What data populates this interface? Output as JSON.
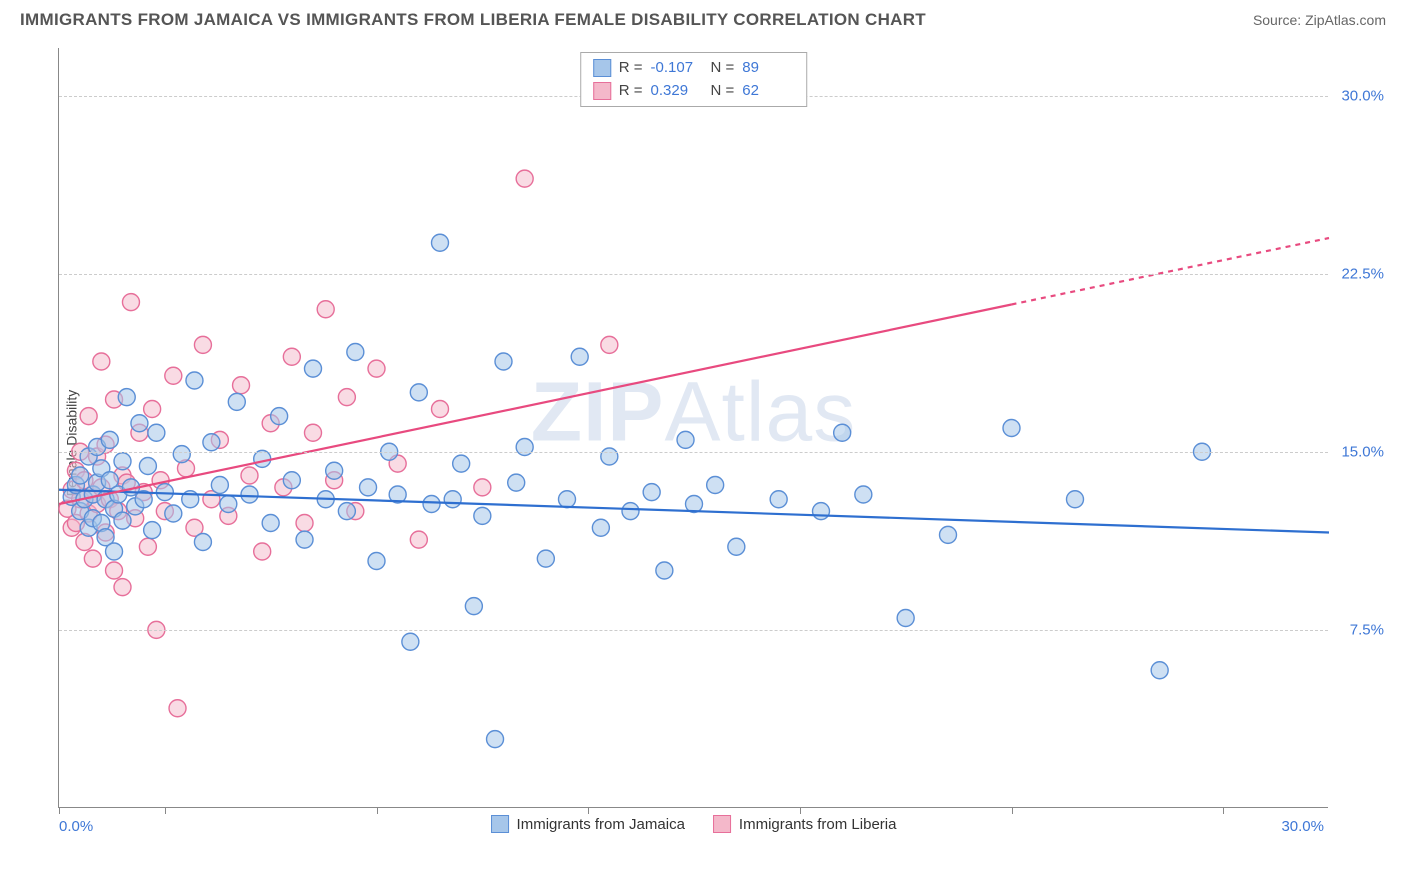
{
  "title": "IMMIGRANTS FROM JAMAICA VS IMMIGRANTS FROM LIBERIA FEMALE DISABILITY CORRELATION CHART",
  "source": "Source: ZipAtlas.com",
  "watermark_a": "ZIP",
  "watermark_b": "Atlas",
  "ylabel": "Female Disability",
  "chart": {
    "type": "scatter",
    "xlim": [
      0,
      30
    ],
    "ylim": [
      0,
      32
    ],
    "x_axis_label_min": "0.0%",
    "x_axis_label_max": "30.0%",
    "y_ticks": [
      7.5,
      15.0,
      22.5,
      30.0
    ],
    "y_tick_labels": [
      "7.5%",
      "15.0%",
      "22.5%",
      "30.0%"
    ],
    "x_tick_positions": [
      0,
      2.5,
      7.5,
      12.5,
      17.5,
      22.5,
      27.5
    ],
    "background_color": "#ffffff",
    "grid_color": "#cccccc",
    "axis_color": "#888888",
    "tick_label_color": "#3e77d6",
    "marker_radius": 8.5,
    "marker_stroke_width": 1.4,
    "line_width": 2.2,
    "series": [
      {
        "name": "Immigrants from Jamaica",
        "fill": "#a6c6ea",
        "stroke": "#5b8fd6",
        "fill_opacity": 0.55,
        "line_color": "#2e6fd0",
        "R": "-0.107",
        "N": "89",
        "trend": {
          "x1": 0,
          "y1": 13.4,
          "x2": 30,
          "y2": 11.6,
          "dash_from_x": null
        },
        "points": [
          [
            0.3,
            13.1
          ],
          [
            0.4,
            13.6
          ],
          [
            0.5,
            12.5
          ],
          [
            0.5,
            14.0
          ],
          [
            0.6,
            13.0
          ],
          [
            0.7,
            11.8
          ],
          [
            0.7,
            14.8
          ],
          [
            0.8,
            13.2
          ],
          [
            0.8,
            12.2
          ],
          [
            0.9,
            15.2
          ],
          [
            0.9,
            13.7
          ],
          [
            1.0,
            12.0
          ],
          [
            1.0,
            14.3
          ],
          [
            1.1,
            13.0
          ],
          [
            1.1,
            11.4
          ],
          [
            1.2,
            13.8
          ],
          [
            1.2,
            15.5
          ],
          [
            1.3,
            12.6
          ],
          [
            1.3,
            10.8
          ],
          [
            1.4,
            13.2
          ],
          [
            1.5,
            14.6
          ],
          [
            1.5,
            12.1
          ],
          [
            1.6,
            17.3
          ],
          [
            1.7,
            13.5
          ],
          [
            1.8,
            12.7
          ],
          [
            1.9,
            16.2
          ],
          [
            2.0,
            13.0
          ],
          [
            2.1,
            14.4
          ],
          [
            2.2,
            11.7
          ],
          [
            2.3,
            15.8
          ],
          [
            2.5,
            13.3
          ],
          [
            2.7,
            12.4
          ],
          [
            2.9,
            14.9
          ],
          [
            3.1,
            13.0
          ],
          [
            3.2,
            18.0
          ],
          [
            3.4,
            11.2
          ],
          [
            3.6,
            15.4
          ],
          [
            3.8,
            13.6
          ],
          [
            4.0,
            12.8
          ],
          [
            4.2,
            17.1
          ],
          [
            4.5,
            13.2
          ],
          [
            4.8,
            14.7
          ],
          [
            5.0,
            12.0
          ],
          [
            5.2,
            16.5
          ],
          [
            5.5,
            13.8
          ],
          [
            5.8,
            11.3
          ],
          [
            6.0,
            18.5
          ],
          [
            6.3,
            13.0
          ],
          [
            6.5,
            14.2
          ],
          [
            6.8,
            12.5
          ],
          [
            7.0,
            19.2
          ],
          [
            7.3,
            13.5
          ],
          [
            7.5,
            10.4
          ],
          [
            7.8,
            15.0
          ],
          [
            8.0,
            13.2
          ],
          [
            8.3,
            7.0
          ],
          [
            8.5,
            17.5
          ],
          [
            8.8,
            12.8
          ],
          [
            9.0,
            23.8
          ],
          [
            9.3,
            13.0
          ],
          [
            9.5,
            14.5
          ],
          [
            9.8,
            8.5
          ],
          [
            10.0,
            12.3
          ],
          [
            10.3,
            2.9
          ],
          [
            10.5,
            18.8
          ],
          [
            10.8,
            13.7
          ],
          [
            11.0,
            15.2
          ],
          [
            11.5,
            10.5
          ],
          [
            12.0,
            13.0
          ],
          [
            12.3,
            19.0
          ],
          [
            12.8,
            11.8
          ],
          [
            13.0,
            14.8
          ],
          [
            13.5,
            12.5
          ],
          [
            14.0,
            13.3
          ],
          [
            14.3,
            10.0
          ],
          [
            14.8,
            15.5
          ],
          [
            15.0,
            12.8
          ],
          [
            15.5,
            13.6
          ],
          [
            16.0,
            11.0
          ],
          [
            17.0,
            13.0
          ],
          [
            18.0,
            12.5
          ],
          [
            18.5,
            15.8
          ],
          [
            19.0,
            13.2
          ],
          [
            20.0,
            8.0
          ],
          [
            21.0,
            11.5
          ],
          [
            22.5,
            16.0
          ],
          [
            24.0,
            13.0
          ],
          [
            26.0,
            5.8
          ],
          [
            27.0,
            15.0
          ]
        ]
      },
      {
        "name": "Immigrants from Liberia",
        "fill": "#f4b8ca",
        "stroke": "#e76f9a",
        "fill_opacity": 0.5,
        "line_color": "#e84a7f",
        "R": "0.329",
        "N": "62",
        "trend": {
          "x1": 0,
          "y1": 12.8,
          "x2": 30,
          "y2": 24.0,
          "dash_from_x": 22.5
        },
        "points": [
          [
            0.2,
            12.6
          ],
          [
            0.3,
            13.4
          ],
          [
            0.3,
            11.8
          ],
          [
            0.4,
            14.2
          ],
          [
            0.4,
            12.0
          ],
          [
            0.5,
            13.0
          ],
          [
            0.5,
            15.0
          ],
          [
            0.6,
            11.2
          ],
          [
            0.6,
            13.8
          ],
          [
            0.7,
            12.4
          ],
          [
            0.7,
            16.5
          ],
          [
            0.8,
            13.2
          ],
          [
            0.8,
            10.5
          ],
          [
            0.9,
            14.8
          ],
          [
            0.9,
            12.8
          ],
          [
            1.0,
            18.8
          ],
          [
            1.0,
            13.5
          ],
          [
            1.1,
            11.6
          ],
          [
            1.1,
            15.3
          ],
          [
            1.2,
            13.0
          ],
          [
            1.3,
            10.0
          ],
          [
            1.3,
            17.2
          ],
          [
            1.4,
            12.5
          ],
          [
            1.5,
            14.0
          ],
          [
            1.5,
            9.3
          ],
          [
            1.6,
            13.7
          ],
          [
            1.7,
            21.3
          ],
          [
            1.8,
            12.2
          ],
          [
            1.9,
            15.8
          ],
          [
            2.0,
            13.3
          ],
          [
            2.1,
            11.0
          ],
          [
            2.2,
            16.8
          ],
          [
            2.3,
            7.5
          ],
          [
            2.4,
            13.8
          ],
          [
            2.5,
            12.5
          ],
          [
            2.7,
            18.2
          ],
          [
            2.8,
            4.2
          ],
          [
            3.0,
            14.3
          ],
          [
            3.2,
            11.8
          ],
          [
            3.4,
            19.5
          ],
          [
            3.6,
            13.0
          ],
          [
            3.8,
            15.5
          ],
          [
            4.0,
            12.3
          ],
          [
            4.3,
            17.8
          ],
          [
            4.5,
            14.0
          ],
          [
            4.8,
            10.8
          ],
          [
            5.0,
            16.2
          ],
          [
            5.3,
            13.5
          ],
          [
            5.5,
            19.0
          ],
          [
            5.8,
            12.0
          ],
          [
            6.0,
            15.8
          ],
          [
            6.3,
            21.0
          ],
          [
            6.5,
            13.8
          ],
          [
            6.8,
            17.3
          ],
          [
            7.0,
            12.5
          ],
          [
            7.5,
            18.5
          ],
          [
            8.0,
            14.5
          ],
          [
            8.5,
            11.3
          ],
          [
            9.0,
            16.8
          ],
          [
            10.0,
            13.5
          ],
          [
            11.0,
            26.5
          ],
          [
            13.0,
            19.5
          ]
        ]
      }
    ]
  }
}
